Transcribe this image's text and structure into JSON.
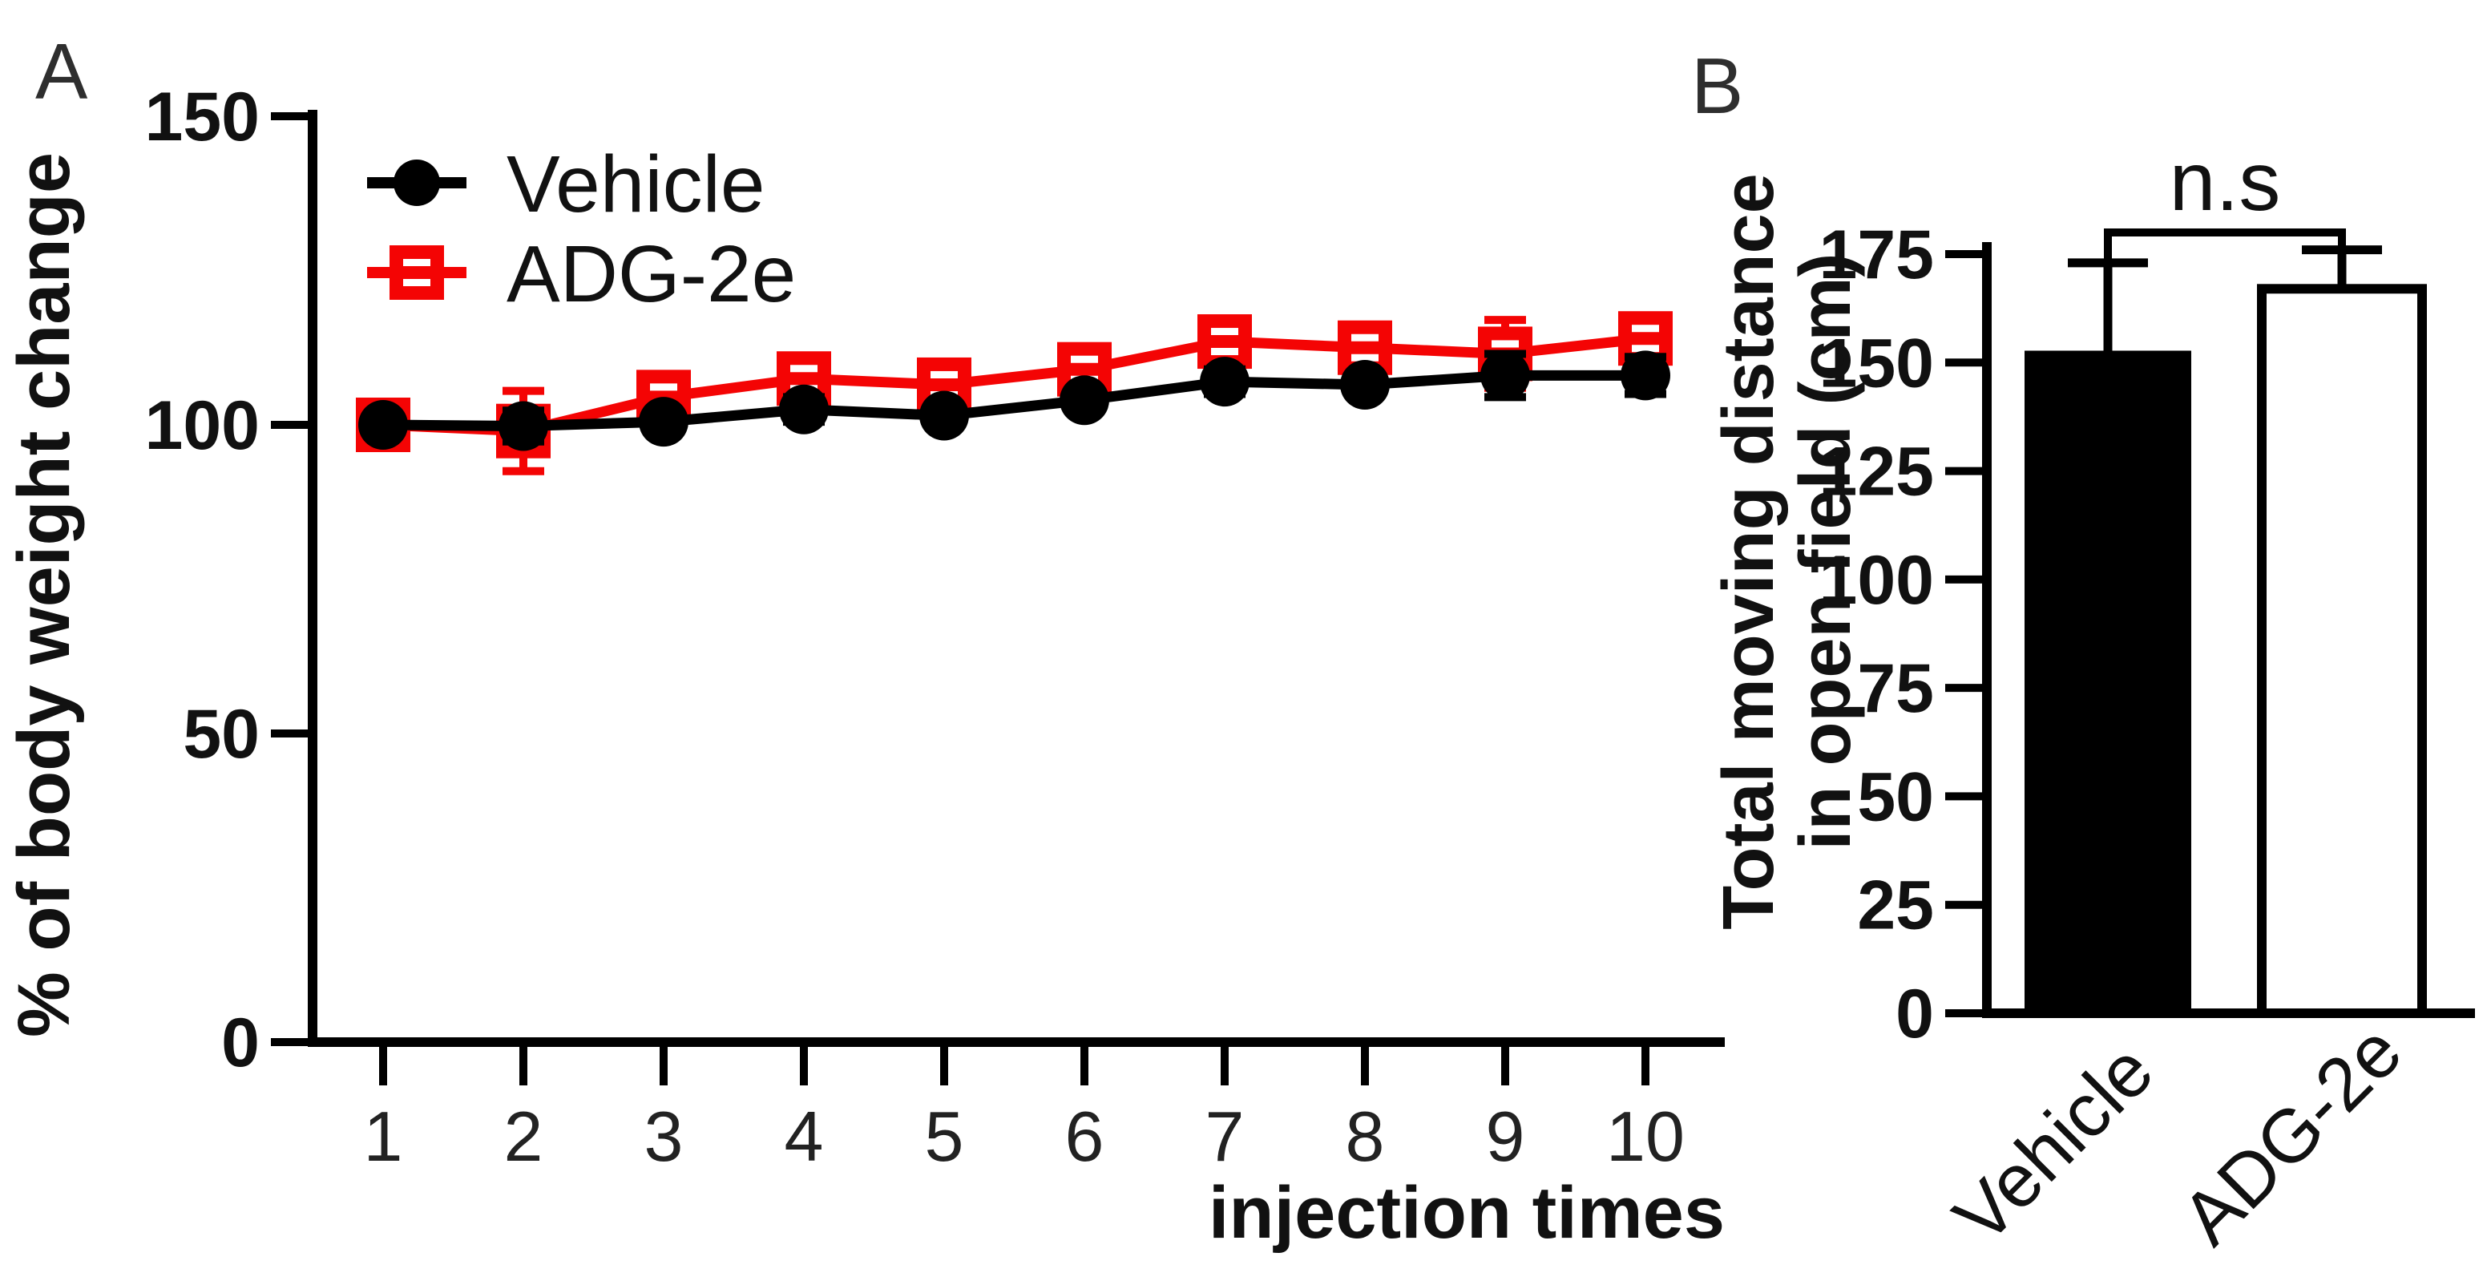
{
  "panels": {
    "a": {
      "label": "A"
    },
    "b": {
      "label": "B"
    }
  },
  "colors": {
    "black": "#000000",
    "red": "#f40404",
    "tick_text": "#222222",
    "panel_label": "#2e2e2e",
    "white": "#ffffff"
  },
  "chart_data": [
    {
      "type": "line",
      "panel": "A",
      "title": "",
      "xlabel": "injection times",
      "ylabel": "% of body weight change",
      "x": [
        1,
        2,
        3,
        4,
        5,
        6,
        7,
        8,
        9,
        10
      ],
      "ylim": [
        0,
        150
      ],
      "yticks": [
        0,
        50,
        100,
        150
      ],
      "grid": false,
      "legend_position": "top-left",
      "series": [
        {
          "name": "Vehicle",
          "marker": "filled-circle",
          "color": "#000000",
          "values": [
            100,
            99.8,
            100.5,
            102.5,
            101.5,
            104,
            107,
            106.5,
            108,
            108
          ],
          "sem": [
            1.5,
            2.5,
            1.5,
            2,
            1.5,
            1.5,
            2,
            1.5,
            3.5,
            3
          ]
        },
        {
          "name": "ADG-2e",
          "marker": "open-square",
          "color": "#f40404",
          "values": [
            100,
            99,
            104.5,
            107.5,
            106.5,
            109,
            113.5,
            112.5,
            111.5,
            114
          ],
          "sem": [
            2.5,
            6.5,
            2.5,
            2.5,
            2.5,
            2.5,
            3,
            2.5,
            5.5,
            3
          ]
        }
      ]
    },
    {
      "type": "bar",
      "panel": "B",
      "title": "",
      "ylabel_lines": [
        "Total moving distance",
        "in open field (cm)"
      ],
      "categories": [
        "Vehicle",
        "ADG-2e"
      ],
      "values": [
        152,
        167
      ],
      "sem": [
        21,
        9
      ],
      "ylim": [
        0,
        175
      ],
      "yticks": [
        0,
        25,
        50,
        75,
        100,
        125,
        150,
        175
      ],
      "grid": false,
      "bar_fills": [
        "#000000",
        "#ffffff"
      ],
      "bar_stroke": "#000000",
      "significance": "n.s"
    }
  ]
}
